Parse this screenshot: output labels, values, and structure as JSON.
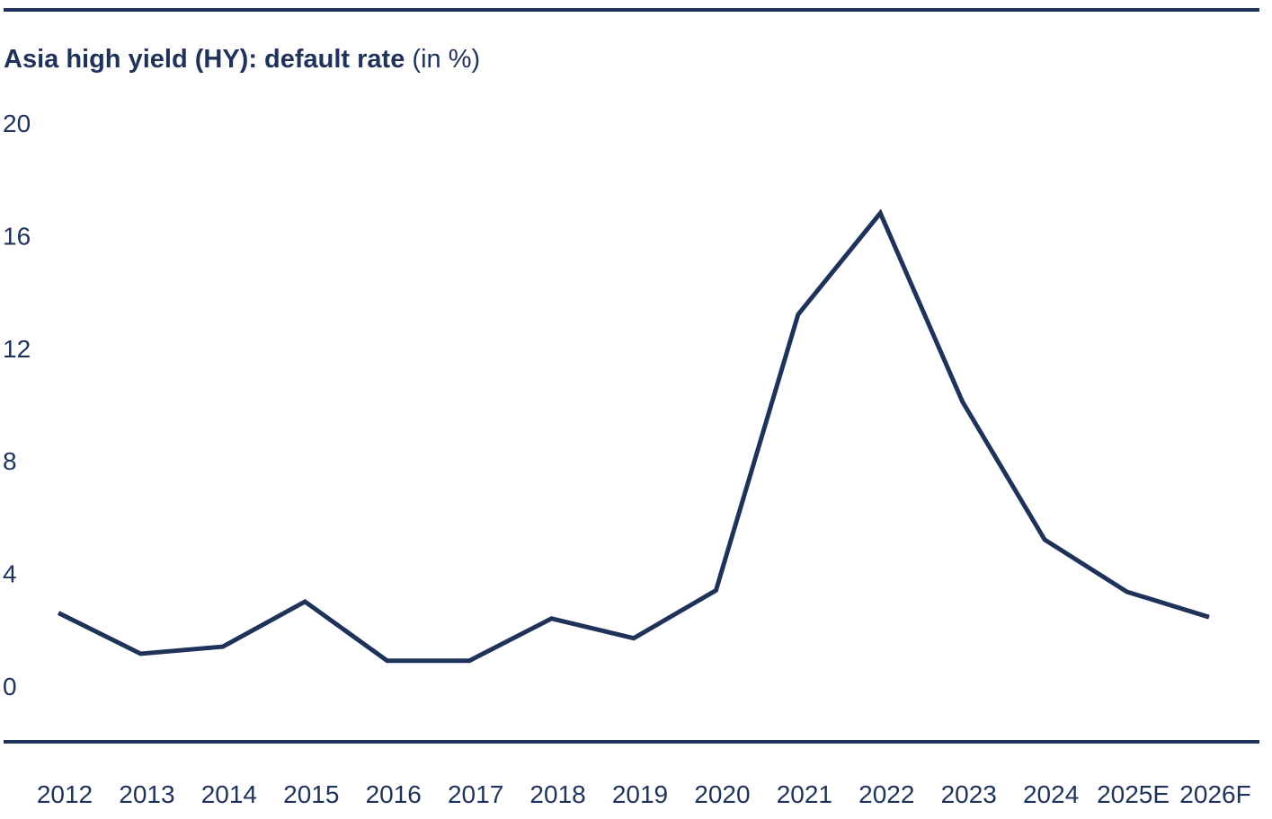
{
  "chart_data": {
    "type": "line",
    "title": "Asia high yield (HY): default rate",
    "title_unit": "(in %)",
    "xlabel": "",
    "ylabel": "",
    "categories": [
      "2012",
      "2013",
      "2014",
      "2015",
      "2016",
      "2017",
      "2018",
      "2019",
      "2020",
      "2021",
      "2022",
      "2023",
      "2024",
      "2025E",
      "2026F"
    ],
    "values": [
      2.6,
      1.15,
      1.4,
      3.0,
      0.9,
      0.9,
      2.4,
      1.7,
      3.4,
      13.2,
      16.8,
      10.1,
      5.2,
      3.35,
      2.45
    ],
    "ylim": [
      0,
      20
    ],
    "yticks": [
      0,
      4,
      8,
      12,
      16,
      20
    ],
    "grid": false,
    "legend": "none",
    "colors": {
      "line": "#1f325a",
      "text": "#1f325a"
    }
  }
}
